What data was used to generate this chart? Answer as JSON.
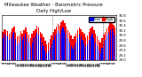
{
  "title": "Milwaukee Weather - Barometric Pressure",
  "subtitle": "Daily High/Low",
  "ylim": [
    29.0,
    30.8
  ],
  "yticks": [
    29.0,
    29.2,
    29.4,
    29.6,
    29.8,
    30.0,
    30.2,
    30.4,
    30.6,
    30.8
  ],
  "ytick_labels": [
    "29.0",
    "29.2",
    "29.4",
    "29.6",
    "29.8",
    "30.0",
    "30.2",
    "30.4",
    "30.6",
    "30.8"
  ],
  "background_color": "#ffffff",
  "bar_width": 0.4,
  "high_color": "#ff0000",
  "low_color": "#0000ff",
  "high_values": [
    30.15,
    30.25,
    30.22,
    30.18,
    30.05,
    30.12,
    30.28,
    30.35,
    30.1,
    29.95,
    30.0,
    30.18,
    30.08,
    30.22,
    30.3,
    30.15,
    30.02,
    29.88,
    30.05,
    30.18,
    30.25,
    30.4,
    30.3,
    30.15,
    30.05,
    29.92,
    29.78,
    29.65,
    29.72,
    29.85,
    30.0,
    30.12,
    30.25,
    30.35,
    30.45,
    30.38,
    30.52,
    30.6,
    30.48,
    30.35,
    30.22,
    30.1,
    29.98,
    29.85,
    29.95,
    30.08,
    30.2,
    30.32,
    30.25,
    30.15,
    30.05,
    29.92,
    30.0,
    30.15,
    30.28,
    30.35,
    30.2,
    30.08,
    29.95,
    29.82,
    29.7,
    29.88,
    30.02,
    30.15,
    30.28,
    30.38,
    30.48,
    30.55,
    30.42,
    30.3
  ],
  "low_values": [
    29.9,
    30.05,
    30.0,
    29.95,
    29.8,
    29.88,
    30.05,
    30.12,
    29.85,
    29.65,
    29.72,
    29.92,
    29.82,
    29.95,
    30.05,
    29.88,
    29.7,
    29.52,
    29.7,
    29.88,
    29.95,
    30.1,
    30.02,
    29.88,
    29.72,
    29.55,
    29.4,
    29.28,
    29.35,
    29.48,
    29.65,
    29.82,
    29.98,
    30.08,
    30.18,
    30.08,
    30.22,
    30.32,
    30.18,
    30.05,
    29.88,
    29.72,
    29.58,
    29.45,
    29.58,
    29.72,
    29.88,
    30.02,
    29.95,
    29.82,
    29.68,
    29.55,
    29.65,
    29.8,
    29.95,
    30.05,
    29.88,
    29.72,
    29.58,
    29.42,
    29.28,
    29.48,
    29.65,
    29.82,
    29.98,
    30.1,
    30.22,
    30.28,
    30.12,
    30.0
  ],
  "x_labels": [
    "1",
    "2",
    "3",
    "4",
    "5",
    "6",
    "7",
    "8",
    "9",
    "10",
    "11",
    "12",
    "13",
    "14",
    "15",
    "16",
    "17",
    "18",
    "19",
    "20",
    "21",
    "22",
    "23",
    "24",
    "25",
    "26",
    "27",
    "28",
    "29",
    "30",
    "31",
    "1",
    "2",
    "3",
    "4",
    "5",
    "6",
    "7",
    "8",
    "9",
    "10",
    "11",
    "12",
    "13",
    "14",
    "15",
    "16",
    "17",
    "18",
    "19",
    "20",
    "21",
    "22",
    "23",
    "24",
    "25",
    "26",
    "27",
    "28",
    "29",
    "30",
    "1",
    "2",
    "3",
    "4",
    "5",
    "6",
    "7",
    "8",
    "9"
  ],
  "dashed_line_indices": [
    30.5,
    61.5
  ],
  "title_fontsize": 3.8,
  "tick_fontsize": 2.8,
  "legend_fontsize": 3.0,
  "n_bars": 70
}
